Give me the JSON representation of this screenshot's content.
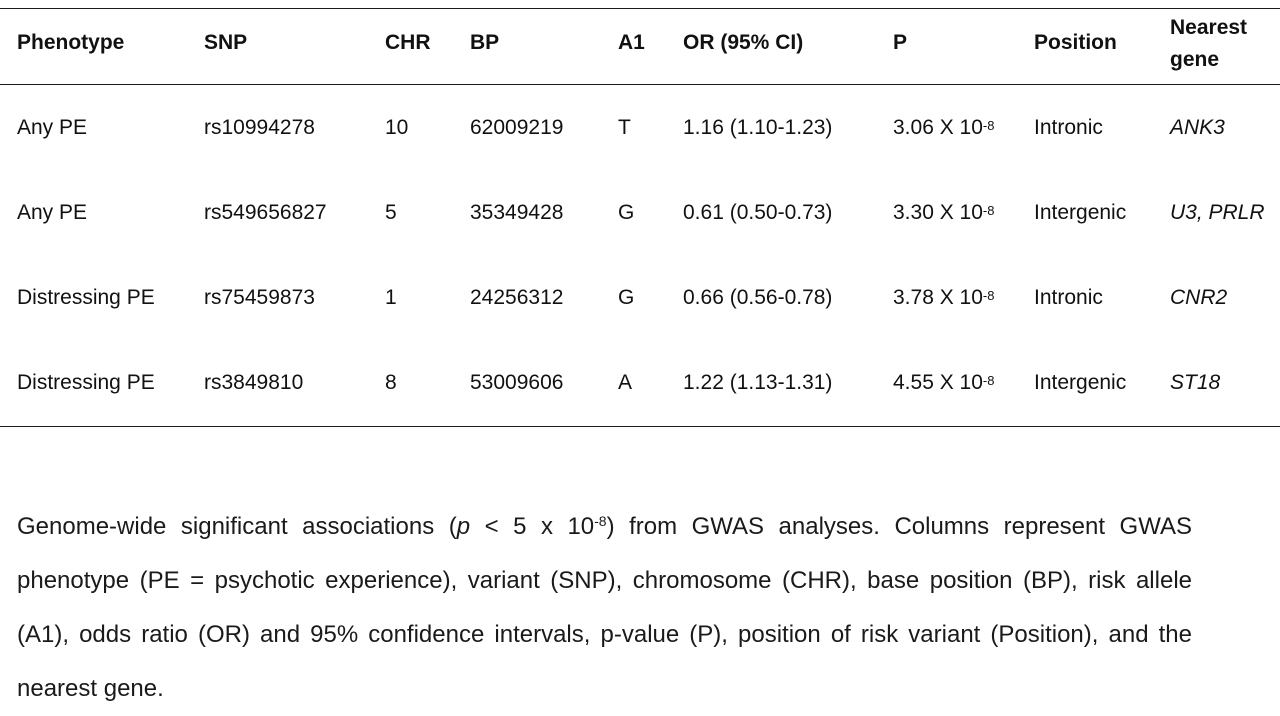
{
  "table": {
    "headers": {
      "phenotype": "Phenotype",
      "snp": "SNP",
      "chr": "CHR",
      "bp": "BP",
      "a1": "A1",
      "or": "OR (95% CI)",
      "p": "P",
      "position": "Position",
      "nearest_gene_line1": "Nearest",
      "nearest_gene_line2": "gene"
    },
    "rows": [
      {
        "phenotype": "Any PE",
        "snp": "rs10994278",
        "chr": "10",
        "bp": "62009219",
        "a1": "T",
        "or": "1.16 (1.10-1.23)",
        "p_mantissa": "3.06 X 10",
        "p_exp": "-8",
        "position": "Intronic",
        "gene": "ANK3"
      },
      {
        "phenotype": "Any PE",
        "snp": "rs549656827",
        "chr": "5",
        "bp": "35349428",
        "a1": "G",
        "or": "0.61 (0.50-0.73)",
        "p_mantissa": "3.30 X 10",
        "p_exp": "-8",
        "position": "Intergenic",
        "gene": "U3, PRLR"
      },
      {
        "phenotype": "Distressing PE",
        "snp": "rs75459873",
        "chr": "1",
        "bp": "24256312",
        "a1": "G",
        "or": "0.66 (0.56-0.78)",
        "p_mantissa": "3.78 X 10",
        "p_exp": "-8",
        "position": "Intronic",
        "gene": "CNR2"
      },
      {
        "phenotype": "Distressing PE",
        "snp": "rs3849810",
        "chr": "8",
        "bp": "53009606",
        "a1": "A",
        "or": "1.22 (1.13-1.31)",
        "p_mantissa": "4.55 X 10",
        "p_exp": "-8",
        "position": "Intergenic",
        "gene": "ST18"
      }
    ]
  },
  "caption": {
    "part1": "Genome-wide significant associations (",
    "p_symbol": "p",
    "part2": " < 5 x 10",
    "exp": "-8",
    "part3": ") from GWAS analyses. Columns represent GWAS phenotype (PE = psychotic experience), variant (SNP), chromosome (CHR), base position (BP), risk allele (A1), odds ratio (OR) and 95% confidence intervals, p-value (P), position of risk variant (Position), and the nearest gene."
  }
}
